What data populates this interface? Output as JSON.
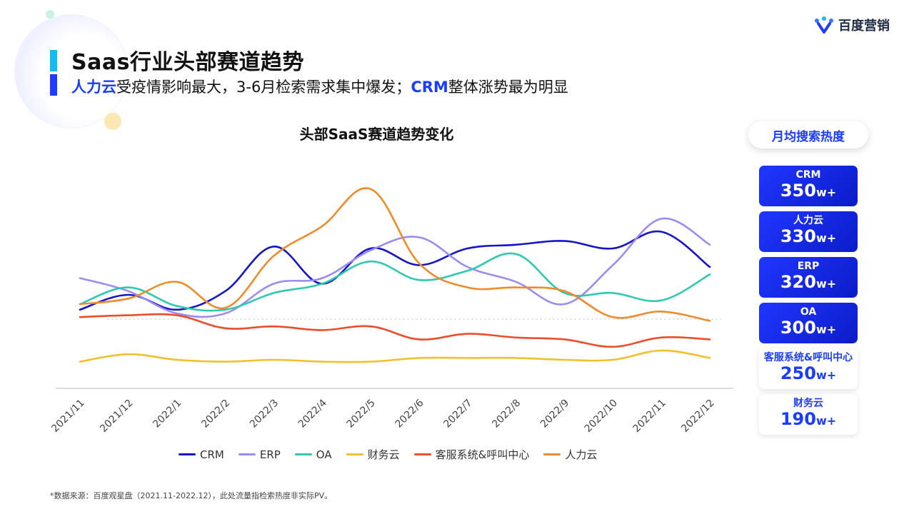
{
  "header": {
    "title": "Saas行业头部赛道趋势",
    "subtitle_hl1": "人力云",
    "subtitle_mid": "受疫情影响最大，3-6月检索需求集中爆发；",
    "subtitle_hl2": "CRM",
    "subtitle_end": "整体涨势最为明显"
  },
  "logo": {
    "text": "百度营销",
    "icon": "baidu-marketing-logo-icon"
  },
  "footnote": "*数据来源：百度观星盘（2021.11-2022.12），此处流量指检索热度非实际PV。",
  "side_panel": {
    "header": "月均搜索热度",
    "cards": [
      {
        "name": "CRM",
        "value": "350",
        "unit": "w+",
        "style": "dark"
      },
      {
        "name": "人力云",
        "value": "330",
        "unit": "w+",
        "style": "dark"
      },
      {
        "name": "ERP",
        "value": "320",
        "unit": "w+",
        "style": "dark"
      },
      {
        "name": "OA",
        "value": "300",
        "unit": "w+",
        "style": "dark"
      },
      {
        "name": "客服系统&呼叫中心",
        "value": "250",
        "unit": "w+",
        "style": "light"
      },
      {
        "name": "财务云",
        "value": "190",
        "unit": "w+",
        "style": "light"
      }
    ]
  },
  "chart_data": {
    "type": "line",
    "title": "头部SaaS赛道趋势变化",
    "smooth": true,
    "grid": false,
    "reference_line": "dashed",
    "legend_position": "bottom",
    "categories": [
      "2021/11",
      "2021/12",
      "2022/1",
      "2022/2",
      "2022/3",
      "2022/4",
      "2022/5",
      "2022/6",
      "2022/7",
      "2022/8",
      "2022/9",
      "2022/10",
      "2022/11",
      "2022/12"
    ],
    "ylim": [
      0,
      100
    ],
    "series": [
      {
        "name": "CRM",
        "color": "#1515c8",
        "values": [
          37,
          45,
          37,
          47,
          71,
          51,
          70,
          61,
          70,
          72,
          74,
          70,
          79,
          60
        ]
      },
      {
        "name": "ERP",
        "color": "#9d8cf0",
        "values": [
          54,
          47,
          35,
          35,
          51,
          54,
          69,
          76,
          60,
          52,
          40,
          61,
          86,
          72
        ]
      },
      {
        "name": "OA",
        "color": "#2ec9b0",
        "values": [
          40,
          49,
          39,
          37,
          46,
          51,
          63,
          53,
          58,
          67,
          46,
          46,
          42,
          56
        ]
      },
      {
        "name": "财务云",
        "color": "#f2c02a",
        "values": [
          9,
          13,
          10,
          9,
          10,
          9,
          9,
          11,
          11,
          11,
          10,
          10,
          15,
          11
        ]
      },
      {
        "name": "客服系统&呼叫中心",
        "color": "#ea4e2a",
        "values": [
          33,
          34,
          34,
          27,
          28,
          26,
          28,
          21,
          24,
          22,
          21,
          17,
          22,
          21
        ]
      },
      {
        "name": "人力云",
        "color": "#f08a2a",
        "values": [
          40,
          43,
          52,
          38,
          66,
          82,
          102,
          62,
          49,
          49,
          47,
          33,
          36,
          31
        ]
      }
    ]
  }
}
